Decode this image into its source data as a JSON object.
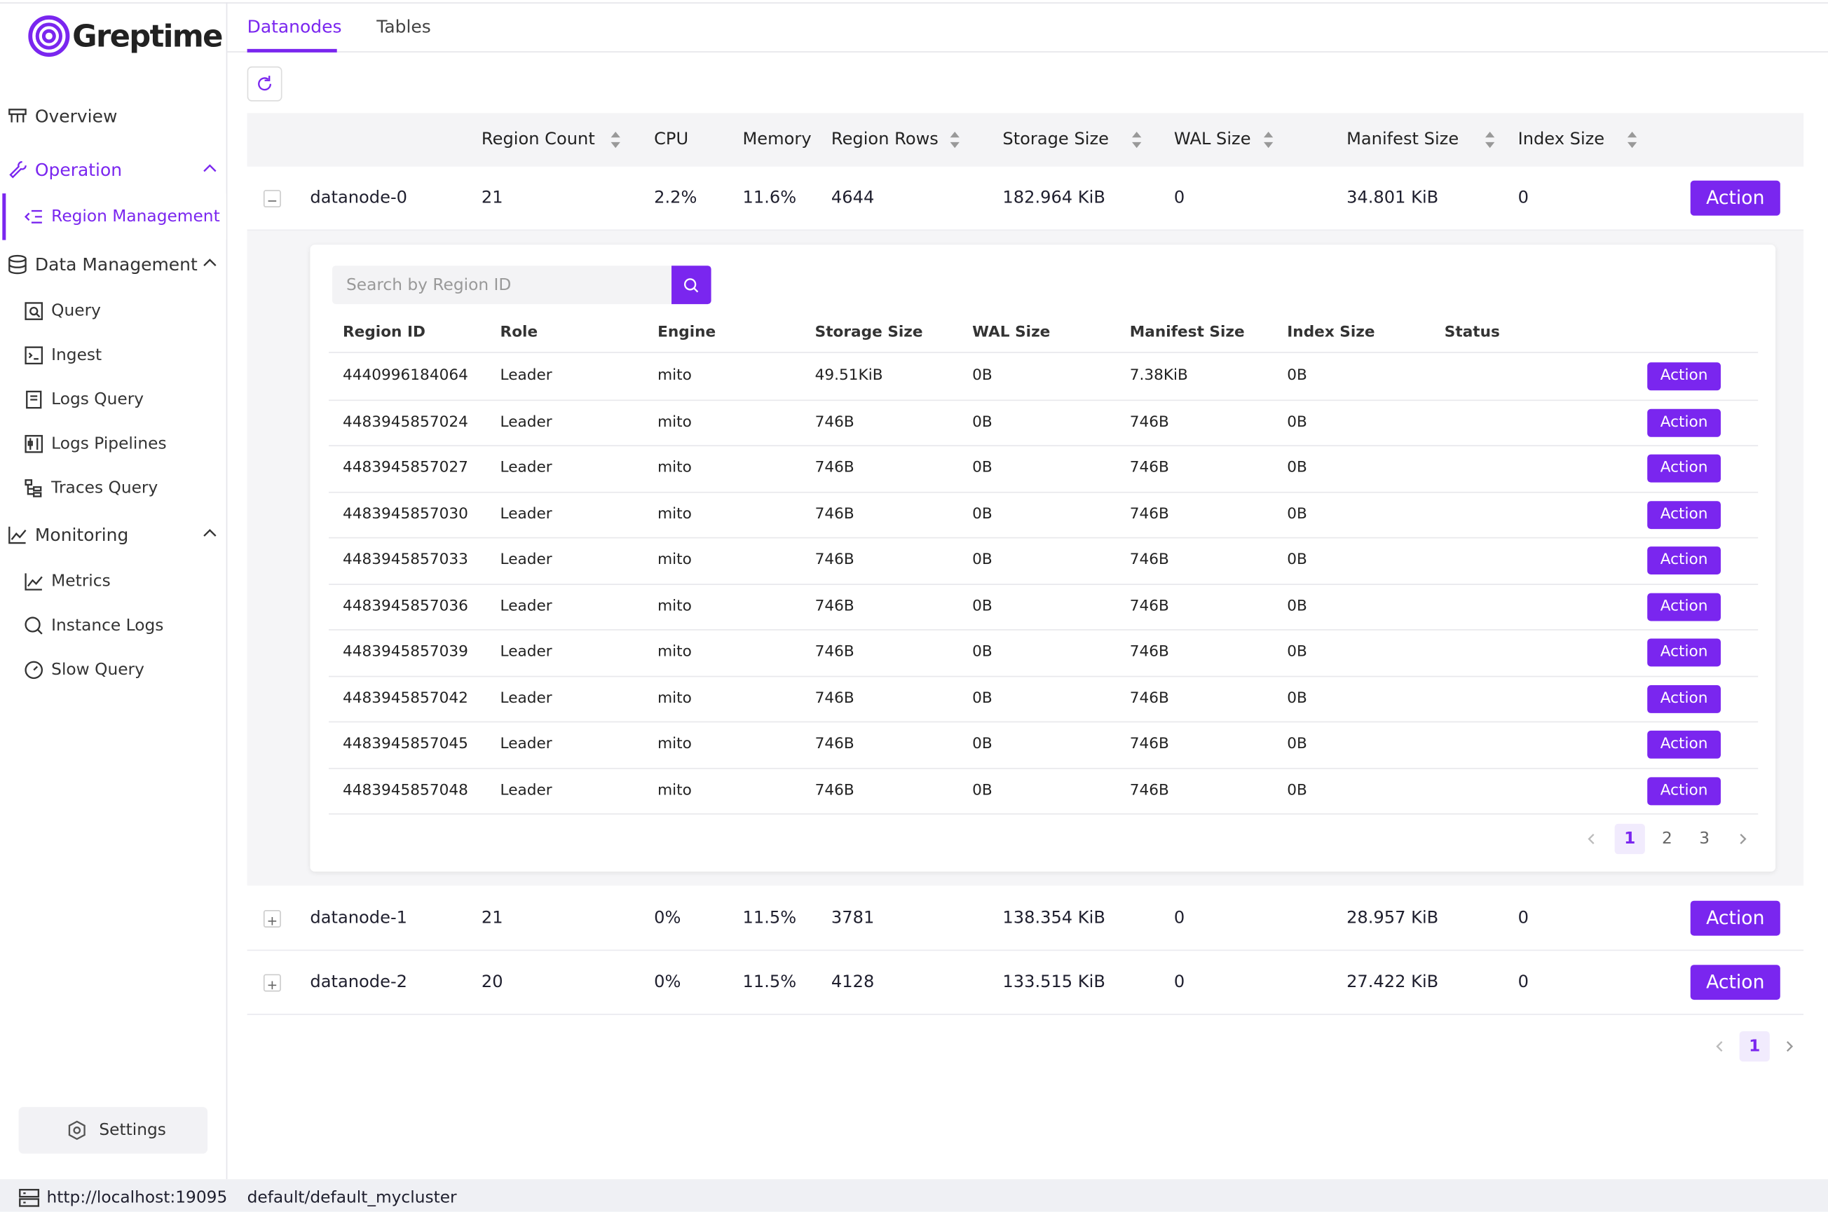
{
  "brand": "Greptime",
  "tabs": [
    "Datanodes",
    "Tables"
  ],
  "nav": [
    {
      "label": "Overview",
      "level": 0
    },
    {
      "label": "Operation",
      "level": 0,
      "group": true,
      "active": true
    },
    {
      "label": "Region Management",
      "level": 1,
      "selected": true
    },
    {
      "label": "Data Management",
      "level": 0,
      "group": true
    },
    {
      "label": "Query",
      "level": 1
    },
    {
      "label": "Ingest",
      "level": 1
    },
    {
      "label": "Logs Query",
      "level": 1
    },
    {
      "label": "Logs Pipelines",
      "level": 1
    },
    {
      "label": "Traces Query",
      "level": 1
    },
    {
      "label": "Monitoring",
      "level": 0,
      "group": true
    },
    {
      "label": "Metrics",
      "level": 1
    },
    {
      "label": "Instance Logs",
      "level": 1
    },
    {
      "label": "Slow Query",
      "level": 1
    }
  ],
  "settings": "Settings",
  "footer": {
    "url": "http://localhost:19095",
    "cluster": "default/default_mycluster"
  },
  "action_label": "Action",
  "datanodes": {
    "headers": [
      {
        "text": "Region Count",
        "sortable": true
      },
      {
        "text": "CPU",
        "sortable": false
      },
      {
        "text": "Memory",
        "sortable": false
      },
      {
        "text": "Region Rows",
        "sortable": true
      },
      {
        "text": "Storage Size",
        "sortable": true
      },
      {
        "text": "WAL Size",
        "sortable": true
      },
      {
        "text": "Manifest Size",
        "sortable": true
      },
      {
        "text": "Index Size",
        "sortable": true
      }
    ],
    "rows": [
      {
        "name": "datanode-0",
        "cells": [
          "21",
          "2.2%",
          "11.6%",
          "4644",
          "182.964 KiB",
          "0",
          "34.801 KiB",
          "0"
        ],
        "expanded": true
      },
      {
        "name": "datanode-1",
        "cells": [
          "21",
          "0%",
          "11.5%",
          "3781",
          "138.354 KiB",
          "0",
          "28.957 KiB",
          "0"
        ],
        "expanded": false
      },
      {
        "name": "datanode-2",
        "cells": [
          "20",
          "0%",
          "11.5%",
          "4128",
          "133.515 KiB",
          "0",
          "27.422 KiB",
          "0"
        ],
        "expanded": false
      }
    ],
    "pages": [
      1
    ],
    "current_page": 1
  },
  "regions": {
    "search_placeholder": "Search by Region ID",
    "headers": [
      "Region ID",
      "Role",
      "Engine",
      "Storage Size",
      "WAL Size",
      "Manifest Size",
      "Index Size",
      "Status"
    ],
    "rows": [
      [
        "4440996184064",
        "Leader",
        "mito",
        "49.51KiB",
        "0B",
        "7.38KiB",
        "0B",
        null
      ],
      [
        "4483945857024",
        "Leader",
        "mito",
        "746B",
        "0B",
        "746B",
        "0B",
        null
      ],
      [
        "4483945857027",
        "Leader",
        "mito",
        "746B",
        "0B",
        "746B",
        "0B",
        null
      ],
      [
        "4483945857030",
        "Leader",
        "mito",
        "746B",
        "0B",
        "746B",
        "0B",
        null
      ],
      [
        "4483945857033",
        "Leader",
        "mito",
        "746B",
        "0B",
        "746B",
        "0B",
        null
      ],
      [
        "4483945857036",
        "Leader",
        "mito",
        "746B",
        "0B",
        "746B",
        "0B",
        null
      ],
      [
        "4483945857039",
        "Leader",
        "mito",
        "746B",
        "0B",
        "746B",
        "0B",
        null
      ],
      [
        "4483945857042",
        "Leader",
        "mito",
        "746B",
        "0B",
        "746B",
        "0B",
        null
      ],
      [
        "4483945857045",
        "Leader",
        "mito",
        "746B",
        "0B",
        "746B",
        "0B",
        null
      ],
      [
        "4483945857048",
        "Leader",
        "mito",
        "746B",
        "0B",
        "746B",
        "0B",
        null
      ]
    ],
    "pages": [
      1,
      2,
      3
    ],
    "current_page": 1
  }
}
